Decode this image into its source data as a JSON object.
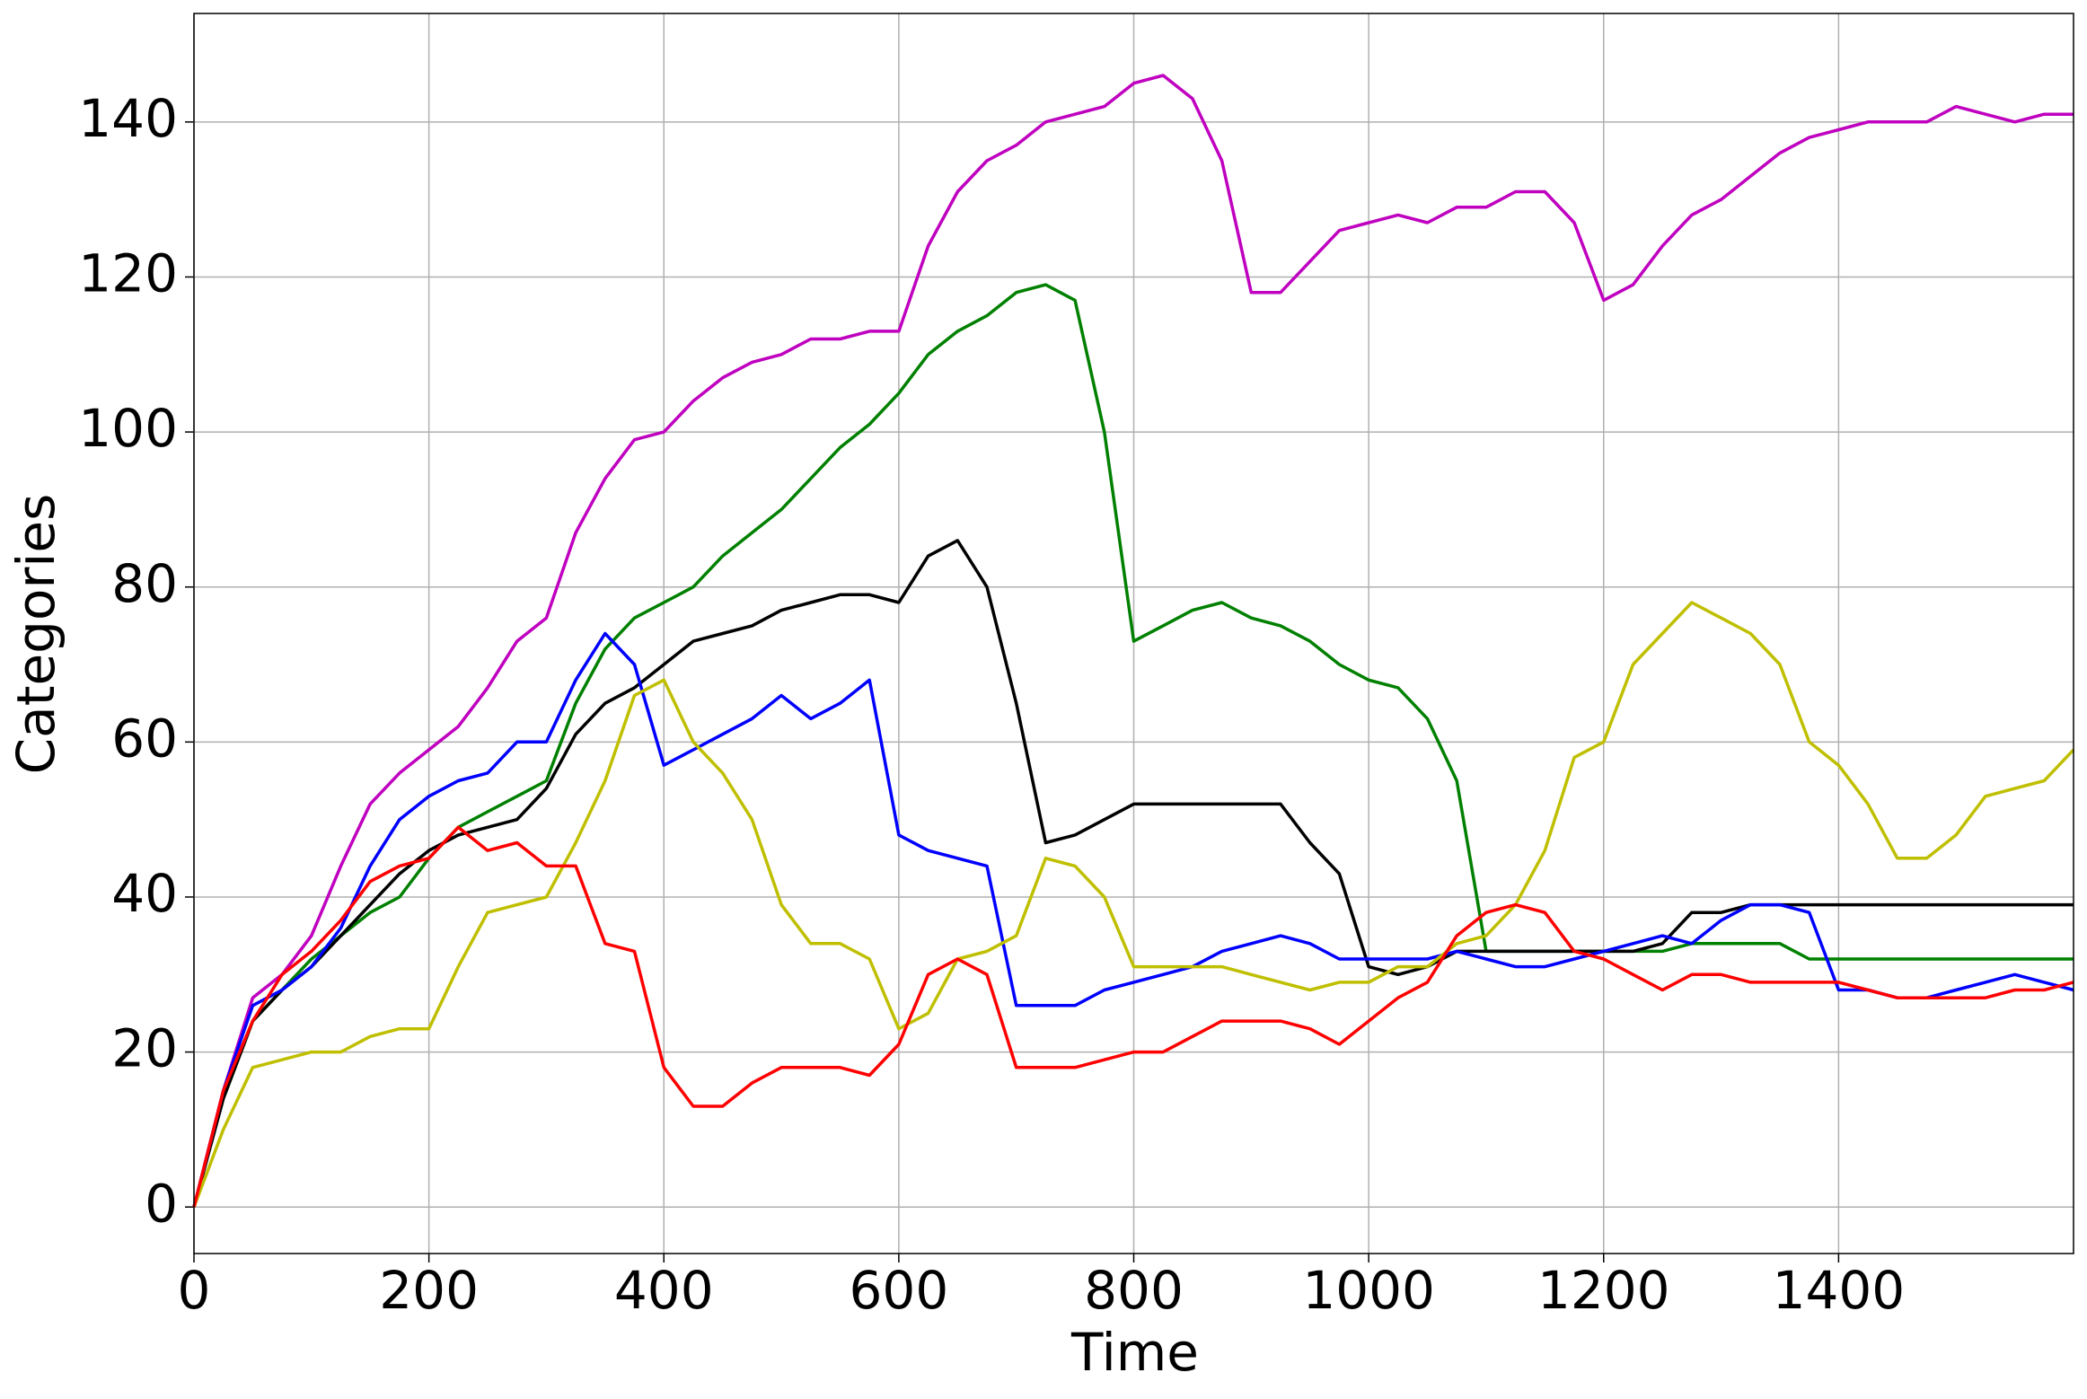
{
  "chart_data": {
    "type": "line",
    "x_label": "Time",
    "y_label": "Categories",
    "x": [
      0,
      25,
      50,
      75,
      100,
      125,
      150,
      175,
      200,
      225,
      250,
      275,
      300,
      325,
      350,
      375,
      400,
      425,
      450,
      475,
      500,
      525,
      550,
      575,
      600,
      625,
      650,
      675,
      700,
      725,
      750,
      775,
      800,
      825,
      850,
      875,
      900,
      925,
      950,
      975,
      1000,
      1025,
      1050,
      1075,
      1100,
      1125,
      1150,
      1175,
      1200,
      1225,
      1250,
      1275,
      1300,
      1325,
      1350,
      1375,
      1400,
      1425,
      1450,
      1475,
      1500,
      1525,
      1550,
      1575,
      1600
    ],
    "series": [
      {
        "color": "#bf00bf",
        "values": [
          0,
          15,
          27,
          30,
          35,
          44,
          52,
          56,
          59,
          62,
          67,
          73,
          76,
          87,
          94,
          99,
          100,
          104,
          107,
          109,
          110,
          112,
          112,
          113,
          113,
          124,
          131,
          135,
          137,
          140,
          141,
          142,
          145,
          146,
          143,
          135,
          118,
          118,
          122,
          126,
          127,
          128,
          127,
          129,
          129,
          131,
          131,
          127,
          117,
          119,
          124,
          128,
          130,
          133,
          136,
          138,
          139,
          140,
          140,
          140,
          142,
          141,
          140,
          141,
          141
        ]
      },
      {
        "color": "#008000",
        "values": [
          0,
          14,
          24,
          28,
          32,
          35,
          38,
          40,
          45,
          49,
          51,
          53,
          55,
          65,
          72,
          76,
          78,
          80,
          84,
          87,
          90,
          94,
          98,
          101,
          105,
          110,
          113,
          115,
          118,
          119,
          117,
          100,
          73,
          75,
          77,
          78,
          76,
          75,
          73,
          70,
          68,
          67,
          63,
          55,
          33,
          33,
          33,
          33,
          33,
          33,
          33,
          34,
          34,
          34,
          34,
          32,
          32,
          32,
          32,
          32,
          32,
          32,
          32,
          32,
          32
        ]
      },
      {
        "color": "#000000",
        "values": [
          0,
          14,
          24,
          28,
          31,
          35,
          39,
          43,
          46,
          48,
          49,
          50,
          54,
          61,
          65,
          67,
          70,
          73,
          74,
          75,
          77,
          78,
          79,
          79,
          78,
          84,
          86,
          80,
          65,
          47,
          48,
          50,
          52,
          52,
          52,
          52,
          52,
          52,
          47,
          43,
          31,
          30,
          31,
          33,
          33,
          33,
          33,
          33,
          33,
          33,
          34,
          38,
          38,
          39,
          39,
          39,
          39,
          39,
          39,
          39,
          39,
          39,
          39,
          39,
          39
        ]
      },
      {
        "color": "#0000ff",
        "values": [
          0,
          15,
          26,
          28,
          31,
          36,
          44,
          50,
          53,
          55,
          56,
          60,
          60,
          68,
          74,
          70,
          57,
          59,
          61,
          63,
          66,
          63,
          65,
          68,
          48,
          46,
          45,
          44,
          26,
          26,
          26,
          28,
          29,
          30,
          31,
          33,
          34,
          35,
          34,
          32,
          32,
          32,
          32,
          33,
          32,
          31,
          31,
          32,
          33,
          34,
          35,
          34,
          37,
          39,
          39,
          38,
          28,
          28,
          27,
          27,
          28,
          29,
          30,
          29,
          28
        ]
      },
      {
        "color": "#bfbf00",
        "values": [
          0,
          10,
          18,
          19,
          20,
          20,
          22,
          23,
          23,
          31,
          38,
          39,
          40,
          47,
          55,
          66,
          68,
          60,
          56,
          50,
          39,
          34,
          34,
          32,
          23,
          25,
          32,
          33,
          35,
          45,
          44,
          40,
          31,
          31,
          31,
          31,
          30,
          29,
          28,
          29,
          29,
          31,
          31,
          34,
          35,
          39,
          46,
          58,
          60,
          70,
          74,
          78,
          76,
          74,
          70,
          60,
          57,
          52,
          45,
          45,
          48,
          53,
          54,
          55,
          59
        ]
      },
      {
        "color": "#ff0000",
        "values": [
          0,
          15,
          24,
          30,
          33,
          37,
          42,
          44,
          45,
          49,
          46,
          47,
          44,
          44,
          34,
          33,
          18,
          13,
          13,
          16,
          18,
          18,
          18,
          17,
          21,
          30,
          32,
          30,
          18,
          18,
          18,
          19,
          20,
          20,
          22,
          24,
          24,
          24,
          23,
          21,
          24,
          27,
          29,
          35,
          38,
          39,
          38,
          33,
          32,
          30,
          28,
          30,
          30,
          29,
          29,
          29,
          29,
          28,
          27,
          27,
          27,
          27,
          28,
          28,
          29
        ]
      }
    ],
    "xlim": [
      0,
      1600
    ],
    "xticks": [
      0,
      200,
      400,
      600,
      800,
      1000,
      1200,
      1400
    ],
    "ylim": [
      -6,
      154
    ],
    "yticks": [
      0,
      20,
      40,
      60,
      80,
      100,
      120,
      140
    ],
    "grid": true
  }
}
